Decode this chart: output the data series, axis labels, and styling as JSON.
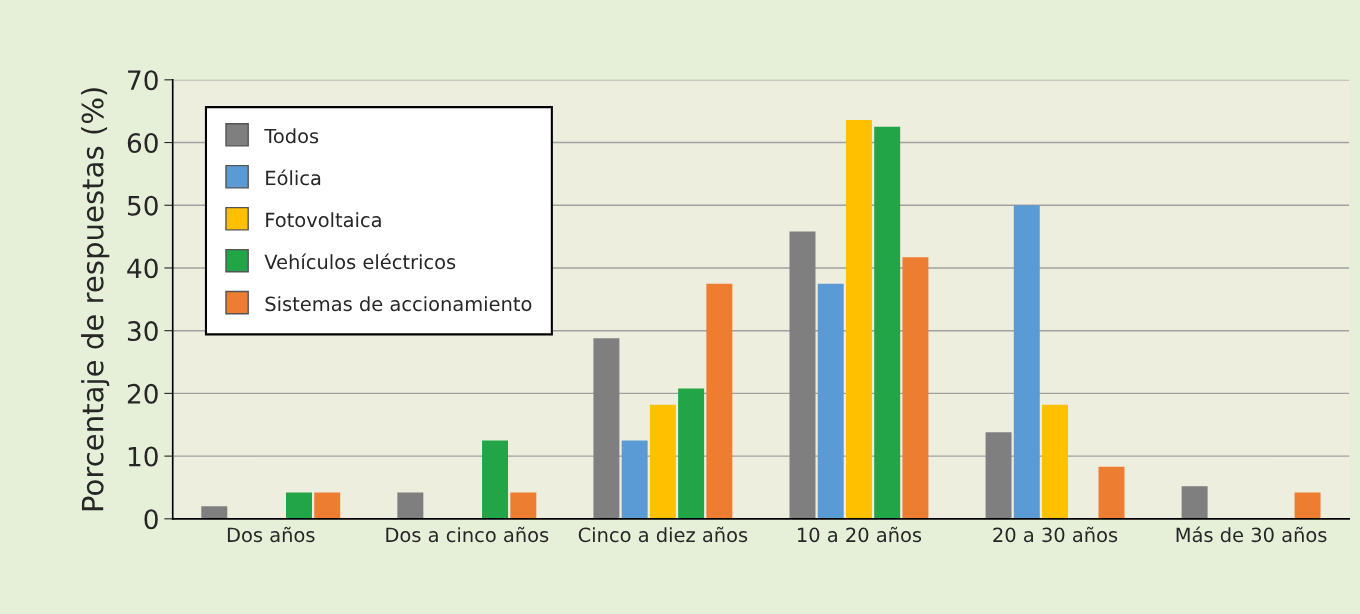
{
  "chart_data": {
    "type": "bar",
    "ylabel": "Porcentaje de respuestas (%)",
    "categories": [
      "Dos años",
      "Dos a cinco años",
      "Cinco a diez años",
      "10 a 20 años",
      "20 a 30 años",
      "Más de 30 años"
    ],
    "series": [
      {
        "name": "Todos",
        "color": "#7f7f7f",
        "values": [
          2,
          4.2,
          28.8,
          45.8,
          13.8,
          5.2
        ]
      },
      {
        "name": "Eólica",
        "color": "#5b9bd5",
        "values": [
          0,
          0,
          12.5,
          37.5,
          50,
          0
        ]
      },
      {
        "name": "Fotovoltaica",
        "color": "#ffc000",
        "values": [
          0,
          0,
          18.2,
          63.6,
          18.2,
          0
        ]
      },
      {
        "name": "Vehículos eléctricos",
        "color": "#21a547",
        "values": [
          4.2,
          12.5,
          20.8,
          62.5,
          0,
          0
        ]
      },
      {
        "name": "Sistemas de accionamiento",
        "color": "#ed7d31",
        "values": [
          4.2,
          4.2,
          37.5,
          41.7,
          8.3,
          4.2
        ]
      }
    ],
    "ylim": [
      0,
      70
    ],
    "yticks": [
      0,
      10,
      20,
      30,
      40,
      50,
      60,
      70
    ],
    "grid": "y",
    "legend": "top left"
  }
}
